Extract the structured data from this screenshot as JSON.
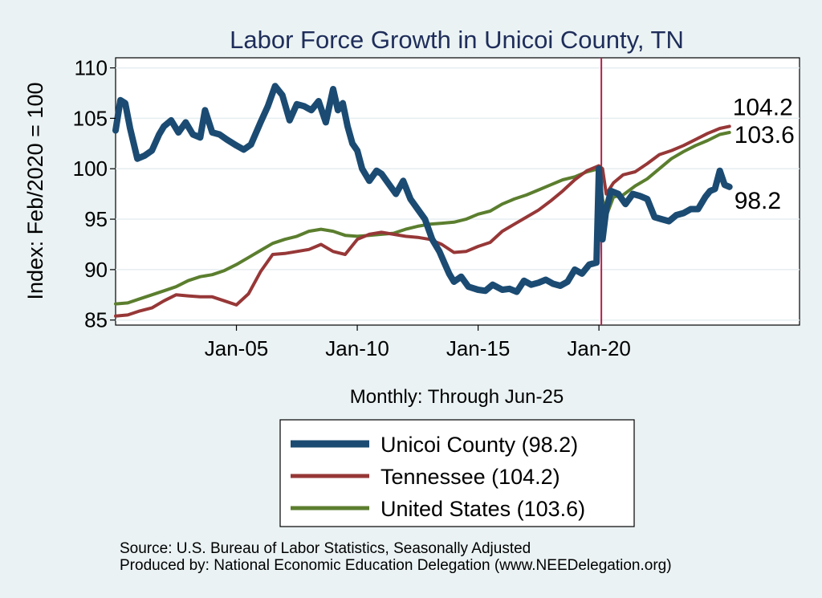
{
  "chart_data": {
    "type": "line",
    "title": "Labor Force Growth in Unicoi  County, TN",
    "ylabel": "Index: Feb/2020 = 100",
    "xlabel": "Monthly: Through Jun-25",
    "ylim": [
      84.5,
      111
    ],
    "xlim": [
      2000.0,
      2028.3
    ],
    "yticks": [
      85,
      90,
      95,
      100,
      105,
      110
    ],
    "xticks": [
      {
        "x": 2005.0,
        "label": "Jan-05"
      },
      {
        "x": 2010.0,
        "label": "Jan-10"
      },
      {
        "x": 2015.0,
        "label": "Jan-15"
      },
      {
        "x": 2020.0,
        "label": "Jan-20"
      }
    ],
    "vline": {
      "x": 2020.1,
      "color": "#b0234a"
    },
    "series": [
      {
        "name": "Unicoi  County",
        "legend_label": "Unicoi  County (98.2)",
        "end_label": "98.2",
        "color": "#1b4b72",
        "width": 8,
        "x": [
          2000.0,
          2000.2,
          2000.4,
          2000.6,
          2000.9,
          2001.2,
          2001.5,
          2001.8,
          2002.0,
          2002.3,
          2002.6,
          2002.9,
          2003.2,
          2003.5,
          2003.7,
          2004.0,
          2004.3,
          2004.6,
          2005.0,
          2005.3,
          2005.6,
          2006.0,
          2006.3,
          2006.6,
          2006.9,
          2007.2,
          2007.5,
          2007.8,
          2008.1,
          2008.4,
          2008.7,
          2009.0,
          2009.2,
          2009.4,
          2009.6,
          2009.8,
          2010.0,
          2010.2,
          2010.5,
          2010.8,
          2011.0,
          2011.3,
          2011.6,
          2011.9,
          2012.2,
          2012.5,
          2012.8,
          2013.1,
          2013.4,
          2013.6,
          2013.8,
          2014.0,
          2014.3,
          2014.6,
          2015.0,
          2015.3,
          2015.6,
          2016.0,
          2016.3,
          2016.6,
          2016.9,
          2017.2,
          2017.5,
          2017.8,
          2018.1,
          2018.4,
          2018.7,
          2019.0,
          2019.3,
          2019.6,
          2019.9,
          2020.0,
          2020.15,
          2020.3,
          2020.5,
          2020.8,
          2021.1,
          2021.4,
          2021.7,
          2022.0,
          2022.3,
          2022.6,
          2022.9,
          2023.2,
          2023.5,
          2023.8,
          2024.1,
          2024.4,
          2024.6,
          2024.8,
          2025.0,
          2025.2,
          2025.4
        ],
        "values": [
          103.8,
          106.8,
          106.5,
          104.0,
          101.0,
          101.3,
          101.8,
          103.4,
          104.2,
          104.8,
          103.6,
          104.6,
          103.4,
          103.1,
          105.8,
          103.6,
          103.4,
          102.9,
          102.3,
          101.9,
          102.4,
          104.6,
          106.2,
          108.2,
          107.3,
          104.8,
          106.4,
          106.2,
          105.8,
          106.7,
          104.6,
          107.9,
          105.8,
          106.5,
          104.2,
          102.5,
          101.8,
          100.0,
          98.8,
          99.8,
          99.5,
          98.5,
          97.5,
          98.8,
          97.0,
          96.0,
          95.0,
          93.0,
          91.8,
          90.7,
          89.6,
          88.8,
          89.3,
          88.3,
          88.0,
          87.9,
          88.5,
          88.0,
          88.1,
          87.8,
          88.9,
          88.5,
          88.7,
          89.0,
          88.6,
          88.4,
          88.8,
          90.0,
          89.6,
          90.5,
          90.7,
          100.0,
          93.0,
          96.0,
          97.8,
          97.5,
          96.5,
          97.5,
          97.3,
          97.0,
          95.2,
          95.0,
          94.8,
          95.4,
          95.6,
          96.0,
          96.0,
          97.2,
          97.8,
          98.0,
          99.8,
          98.4,
          98.2
        ]
      },
      {
        "name": "Tennessee",
        "legend_label": "Tennessee (104.2)",
        "end_label": "104.2",
        "color": "#973737",
        "width": 4,
        "x": [
          2000.0,
          2000.5,
          2001.0,
          2001.5,
          2002.0,
          2002.5,
          2003.0,
          2003.5,
          2004.0,
          2004.5,
          2005.0,
          2005.5,
          2006.0,
          2006.5,
          2007.0,
          2007.5,
          2008.0,
          2008.5,
          2009.0,
          2009.5,
          2010.0,
          2010.5,
          2011.0,
          2011.5,
          2012.0,
          2012.5,
          2013.0,
          2013.5,
          2014.0,
          2014.5,
          2015.0,
          2015.5,
          2016.0,
          2016.5,
          2017.0,
          2017.5,
          2018.0,
          2018.5,
          2019.0,
          2019.5,
          2020.0,
          2020.15,
          2020.3,
          2020.6,
          2021.0,
          2021.5,
          2022.0,
          2022.5,
          2023.0,
          2023.5,
          2024.0,
          2024.5,
          2025.0,
          2025.4
        ],
        "values": [
          85.4,
          85.5,
          85.9,
          86.2,
          86.9,
          87.5,
          87.4,
          87.3,
          87.3,
          86.9,
          86.5,
          87.6,
          89.8,
          91.5,
          91.6,
          91.8,
          92.0,
          92.5,
          91.8,
          91.5,
          93.0,
          93.5,
          93.7,
          93.5,
          93.3,
          93.2,
          93.0,
          92.5,
          91.7,
          91.8,
          92.3,
          92.7,
          93.8,
          94.5,
          95.2,
          95.9,
          96.8,
          97.8,
          98.9,
          99.8,
          100.3,
          100.0,
          97.5,
          98.6,
          99.4,
          99.7,
          100.5,
          101.4,
          101.8,
          102.3,
          102.9,
          103.5,
          104.0,
          104.2
        ]
      },
      {
        "name": "United States",
        "legend_label": "United States (103.6)",
        "end_label": "103.6",
        "color": "#5b7e2e",
        "width": 4,
        "x": [
          2000.0,
          2000.5,
          2001.0,
          2001.5,
          2002.0,
          2002.5,
          2003.0,
          2003.5,
          2004.0,
          2004.5,
          2005.0,
          2005.5,
          2006.0,
          2006.5,
          2007.0,
          2007.5,
          2008.0,
          2008.5,
          2009.0,
          2009.5,
          2010.0,
          2010.5,
          2011.0,
          2011.5,
          2012.0,
          2012.5,
          2013.0,
          2013.5,
          2014.0,
          2014.5,
          2015.0,
          2015.5,
          2016.0,
          2016.5,
          2017.0,
          2017.5,
          2018.0,
          2018.5,
          2019.0,
          2019.5,
          2020.0,
          2020.15,
          2020.3,
          2020.6,
          2021.0,
          2021.5,
          2022.0,
          2022.5,
          2023.0,
          2023.5,
          2024.0,
          2024.5,
          2025.0,
          2025.4
        ],
        "values": [
          86.6,
          86.7,
          87.1,
          87.5,
          87.9,
          88.3,
          88.9,
          89.3,
          89.5,
          89.9,
          90.5,
          91.2,
          91.9,
          92.6,
          93.0,
          93.3,
          93.8,
          94.0,
          93.8,
          93.4,
          93.3,
          93.4,
          93.5,
          93.6,
          94.0,
          94.3,
          94.5,
          94.6,
          94.7,
          95.0,
          95.5,
          95.8,
          96.5,
          97.0,
          97.4,
          97.9,
          98.4,
          98.9,
          99.2,
          99.7,
          100.0,
          97.0,
          95.3,
          97.2,
          97.4,
          98.3,
          99.0,
          100.0,
          101.0,
          101.7,
          102.3,
          102.8,
          103.4,
          103.6
        ]
      }
    ],
    "notes": [
      "Source: U.S. Bureau of Labor Statistics, Seasonally Adjusted",
      "Produced by: National Economic Education Delegation (www.NEEDelegation.org)"
    ]
  }
}
